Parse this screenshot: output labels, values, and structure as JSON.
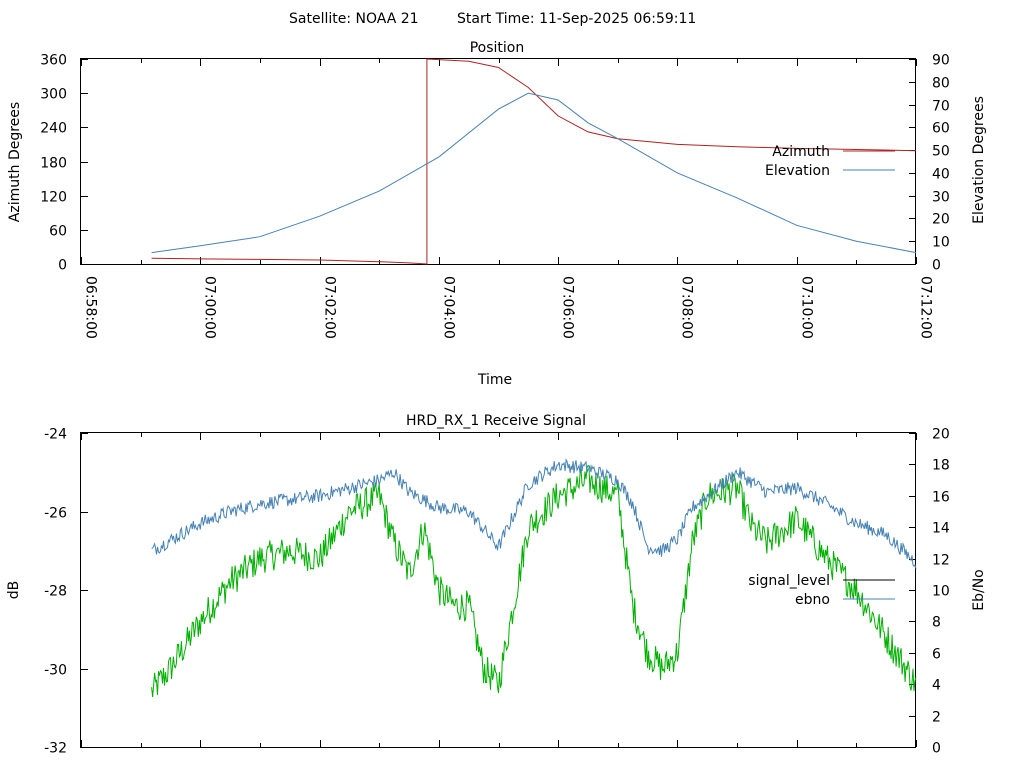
{
  "page": {
    "header_satellite": "Satellite: NOAA 21",
    "header_start": "Start Time: 11-Sep-2025 06:59:11"
  },
  "chart_data": [
    {
      "type": "line",
      "title": "Position",
      "xlabel": "Time",
      "ylabel": "Azimuth Degrees",
      "y2label": "Elevation Degrees",
      "xlim": [
        "06:58:00",
        "07:12:00"
      ],
      "ylim": [
        0,
        360
      ],
      "y2lim": [
        0,
        90
      ],
      "x_ticks": [
        "06:58:00",
        "07:00:00",
        "07:02:00",
        "07:04:00",
        "07:06:00",
        "07:08:00",
        "07:10:00",
        "07:12:00"
      ],
      "y_ticks": [
        "0",
        "60",
        "120",
        "180",
        "240",
        "300",
        "360"
      ],
      "y2_ticks": [
        "0",
        "10",
        "20",
        "30",
        "40",
        "50",
        "60",
        "70",
        "80",
        "90"
      ],
      "legend_position": "right",
      "colors": {
        "azimuth": "#b22222",
        "elevation": "#4682b4"
      },
      "series": [
        {
          "name": "Azimuth",
          "axis": "left",
          "points": [
            [
              "06:59:11",
              10
            ],
            [
              "07:00:00",
              9
            ],
            [
              "07:01:00",
              8
            ],
            [
              "07:02:00",
              7
            ],
            [
              "07:03:00",
              4
            ],
            [
              "07:03:30",
              2
            ],
            [
              "07:03:48",
              0
            ],
            [
              "07:03:48",
              360
            ],
            [
              "07:04:30",
              356
            ],
            [
              "07:05:00",
              345
            ],
            [
              "07:05:30",
              310
            ],
            [
              "07:06:00",
              260
            ],
            [
              "07:06:30",
              232
            ],
            [
              "07:07:00",
              220
            ],
            [
              "07:08:00",
              210
            ],
            [
              "07:09:00",
              206
            ],
            [
              "07:10:00",
              203
            ],
            [
              "07:11:00",
              201
            ],
            [
              "07:12:00",
              199
            ]
          ]
        },
        {
          "name": "Elevation",
          "axis": "right",
          "points": [
            [
              "06:59:11",
              5
            ],
            [
              "07:00:00",
              8
            ],
            [
              "07:01:00",
              12
            ],
            [
              "07:02:00",
              21
            ],
            [
              "07:03:00",
              32
            ],
            [
              "07:04:00",
              47
            ],
            [
              "07:05:00",
              68
            ],
            [
              "07:05:30",
              75
            ],
            [
              "07:06:00",
              72
            ],
            [
              "07:06:30",
              62
            ],
            [
              "07:07:00",
              55
            ],
            [
              "07:08:00",
              40
            ],
            [
              "07:09:00",
              29
            ],
            [
              "07:10:00",
              17
            ],
            [
              "07:11:00",
              10
            ],
            [
              "07:12:00",
              5
            ]
          ]
        }
      ]
    },
    {
      "type": "line",
      "title": "HRD_RX_1 Receive Signal",
      "ylabel": "dB",
      "y2label": "Eb/No",
      "xlim": [
        "06:58:00",
        "07:12:00"
      ],
      "ylim": [
        -32,
        -24
      ],
      "y2lim": [
        0,
        20
      ],
      "y_ticks": [
        "-24",
        "-26",
        "-28",
        "-30",
        "-32"
      ],
      "y2_ticks": [
        "20",
        "18",
        "16",
        "14",
        "12",
        "10",
        "8",
        "6",
        "4",
        "2",
        "0"
      ],
      "legend_position": "right",
      "colors": {
        "signal_level": "#000000",
        "ebno_line": "#00b000",
        "ebno_key": "#4682b4",
        "dB_trace": "#4682b4"
      },
      "series": [
        {
          "name": "signal_level",
          "axis": "left",
          "points": []
        },
        {
          "name": "ebno",
          "axis": "right",
          "points": [
            [
              "06:59:11",
              3.5
            ],
            [
              "06:59:30",
              5
            ],
            [
              "07:00:00",
              8
            ],
            [
              "07:00:30",
              10.5
            ],
            [
              "07:01:00",
              12
            ],
            [
              "07:01:30",
              12.5
            ],
            [
              "07:02:00",
              12
            ],
            [
              "07:02:30",
              15
            ],
            [
              "07:03:00",
              16
            ],
            [
              "07:03:15",
              13
            ],
            [
              "07:03:30",
              11
            ],
            [
              "07:03:45",
              14
            ],
            [
              "07:04:00",
              10
            ],
            [
              "07:04:15",
              9
            ],
            [
              "07:04:30",
              9
            ],
            [
              "07:04:45",
              5
            ],
            [
              "07:05:00",
              4
            ],
            [
              "07:05:15",
              9
            ],
            [
              "07:05:30",
              14
            ],
            [
              "07:06:00",
              16
            ],
            [
              "07:06:30",
              17
            ],
            [
              "07:07:00",
              16
            ],
            [
              "07:07:15",
              9
            ],
            [
              "07:07:30",
              6
            ],
            [
              "07:07:45",
              5
            ],
            [
              "07:08:00",
              6
            ],
            [
              "07:08:15",
              13
            ],
            [
              "07:08:30",
              16
            ],
            [
              "07:09:00",
              16.5
            ],
            [
              "07:09:15",
              14
            ],
            [
              "07:09:30",
              13
            ],
            [
              "07:10:00",
              14.5
            ],
            [
              "07:10:30",
              12
            ],
            [
              "07:11:00",
              10
            ],
            [
              "07:11:30",
              7
            ],
            [
              "07:12:00",
              4
            ]
          ]
        },
        {
          "name": "",
          "axis": "left",
          "points": [
            [
              "06:59:11",
              -27.0
            ],
            [
              "07:00:00",
              -26.3
            ],
            [
              "07:00:30",
              -26.0
            ],
            [
              "07:01:00",
              -25.8
            ],
            [
              "07:01:30",
              -25.7
            ],
            [
              "07:02:00",
              -25.6
            ],
            [
              "07:02:30",
              -25.4
            ],
            [
              "07:03:00",
              -25.2
            ],
            [
              "07:03:15",
              -25.0
            ],
            [
              "07:03:30",
              -25.5
            ],
            [
              "07:04:00",
              -25.9
            ],
            [
              "07:04:30",
              -26.0
            ],
            [
              "07:05:00",
              -26.9
            ],
            [
              "07:05:15",
              -26.1
            ],
            [
              "07:05:30",
              -25.3
            ],
            [
              "07:06:00",
              -24.8
            ],
            [
              "07:06:30",
              -24.9
            ],
            [
              "07:07:00",
              -25.2
            ],
            [
              "07:07:15",
              -25.8
            ],
            [
              "07:07:30",
              -26.9
            ],
            [
              "07:07:45",
              -27.0
            ],
            [
              "07:08:00",
              -26.7
            ],
            [
              "07:08:15",
              -25.9
            ],
            [
              "07:08:30",
              -25.6
            ],
            [
              "07:09:00",
              -25.0
            ],
            [
              "07:09:30",
              -25.5
            ],
            [
              "07:10:00",
              -25.4
            ],
            [
              "07:10:30",
              -25.8
            ],
            [
              "07:11:00",
              -26.3
            ],
            [
              "07:11:30",
              -26.6
            ],
            [
              "07:12:00",
              -27.3
            ]
          ]
        }
      ]
    }
  ]
}
